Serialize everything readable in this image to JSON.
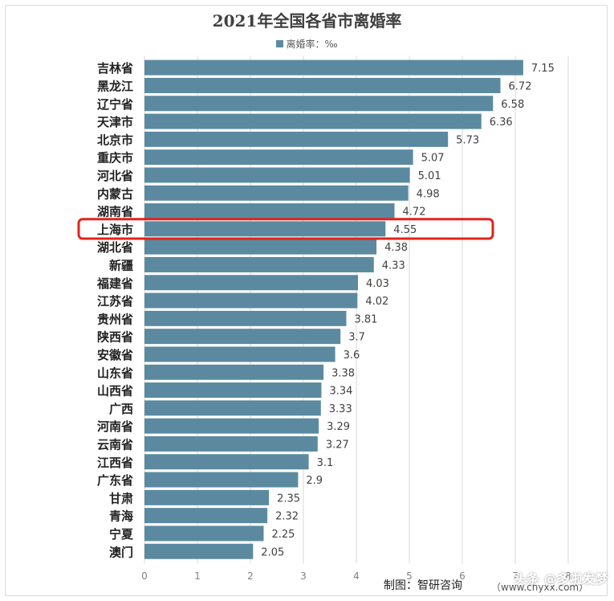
{
  "title": "2021年全国各省市离婚率",
  "legend": {
    "label": "离婚率：‰",
    "color": "#5b8aa0"
  },
  "footer": {
    "source": "制图：智研咨询",
    "site": "（www.chyxx.com）",
    "watermark": "头条 @多啦发梦"
  },
  "highlight": {
    "category": "上海市",
    "color": "#e2231a"
  },
  "chart_data": {
    "type": "bar",
    "orientation": "horizontal",
    "categories": [
      "吉林省",
      "黑龙江",
      "辽宁省",
      "天津市",
      "北京市",
      "重庆市",
      "河北省",
      "内蒙古",
      "湖南省",
      "上海市",
      "湖北省",
      "新疆",
      "福建省",
      "江苏省",
      "贵州省",
      "陕西省",
      "安徽省",
      "山东省",
      "山西省",
      "广西",
      "河南省",
      "云南省",
      "江西省",
      "广东省",
      "甘肃",
      "青海",
      "宁夏",
      "澳门"
    ],
    "values": [
      7.15,
      6.72,
      6.58,
      6.36,
      5.73,
      5.07,
      5.01,
      4.98,
      4.72,
      4.55,
      4.38,
      4.33,
      4.03,
      4.02,
      3.81,
      3.7,
      3.6,
      3.38,
      3.34,
      3.33,
      3.29,
      3.27,
      3.1,
      2.9,
      2.35,
      2.32,
      2.25,
      2.05
    ],
    "value_labels": [
      "7.15",
      "6.72",
      "6.58",
      "6.36",
      "5.73",
      "5.07",
      "5.01",
      "4.98",
      "4.72",
      "4.55",
      "4.38",
      "4.33",
      "4.03",
      "4.02",
      "3.81",
      "3.7",
      "3.6",
      "3.38",
      "3.34",
      "3.33",
      "3.29",
      "3.27",
      "3.1",
      "2.9",
      "2.35",
      "2.32",
      "2.25",
      "2.05"
    ],
    "x_ticks": [
      "0",
      "1",
      "2",
      "3",
      "4",
      "5",
      "6",
      "7",
      "8"
    ],
    "xlim": [
      0,
      8
    ],
    "grid": "vertical",
    "legend_position": "top"
  }
}
